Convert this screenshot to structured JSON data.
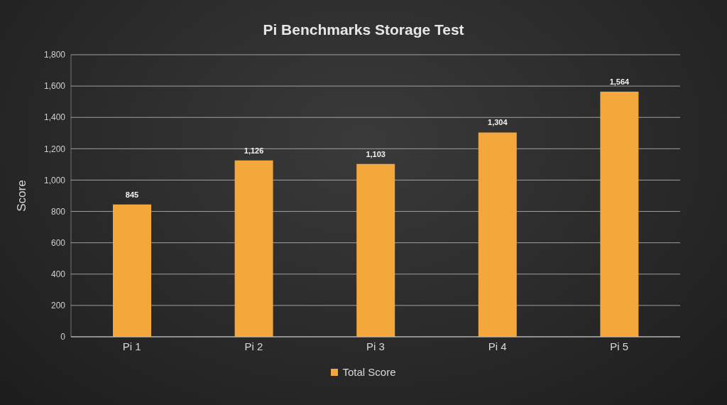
{
  "chart_data": {
    "type": "bar",
    "title": "Pi Benchmarks Storage Test",
    "y_label": "Score",
    "categories": [
      "Pi 1",
      "Pi 2",
      "Pi 3",
      "Pi 4",
      "Pi 5"
    ],
    "series": [
      {
        "name": "Total Score",
        "color": "#f4a73b",
        "values": [
          845,
          1126,
          1103,
          1304,
          1564
        ],
        "value_labels": [
          "845",
          "1,126",
          "1,103",
          "1,304",
          "1,564"
        ]
      }
    ],
    "ylim": [
      0,
      1800
    ],
    "yticks": [
      0,
      200,
      400,
      600,
      800,
      {
        "value": 1000,
        "label": "1,000"
      },
      {
        "value": 1200,
        "label": "1,200"
      },
      {
        "value": 1400,
        "label": "1,400"
      },
      {
        "value": 1600,
        "label": "1,600"
      },
      {
        "value": 1800,
        "label": "1,800"
      }
    ],
    "grid": true,
    "data_labels": true,
    "legend": "bottom"
  }
}
